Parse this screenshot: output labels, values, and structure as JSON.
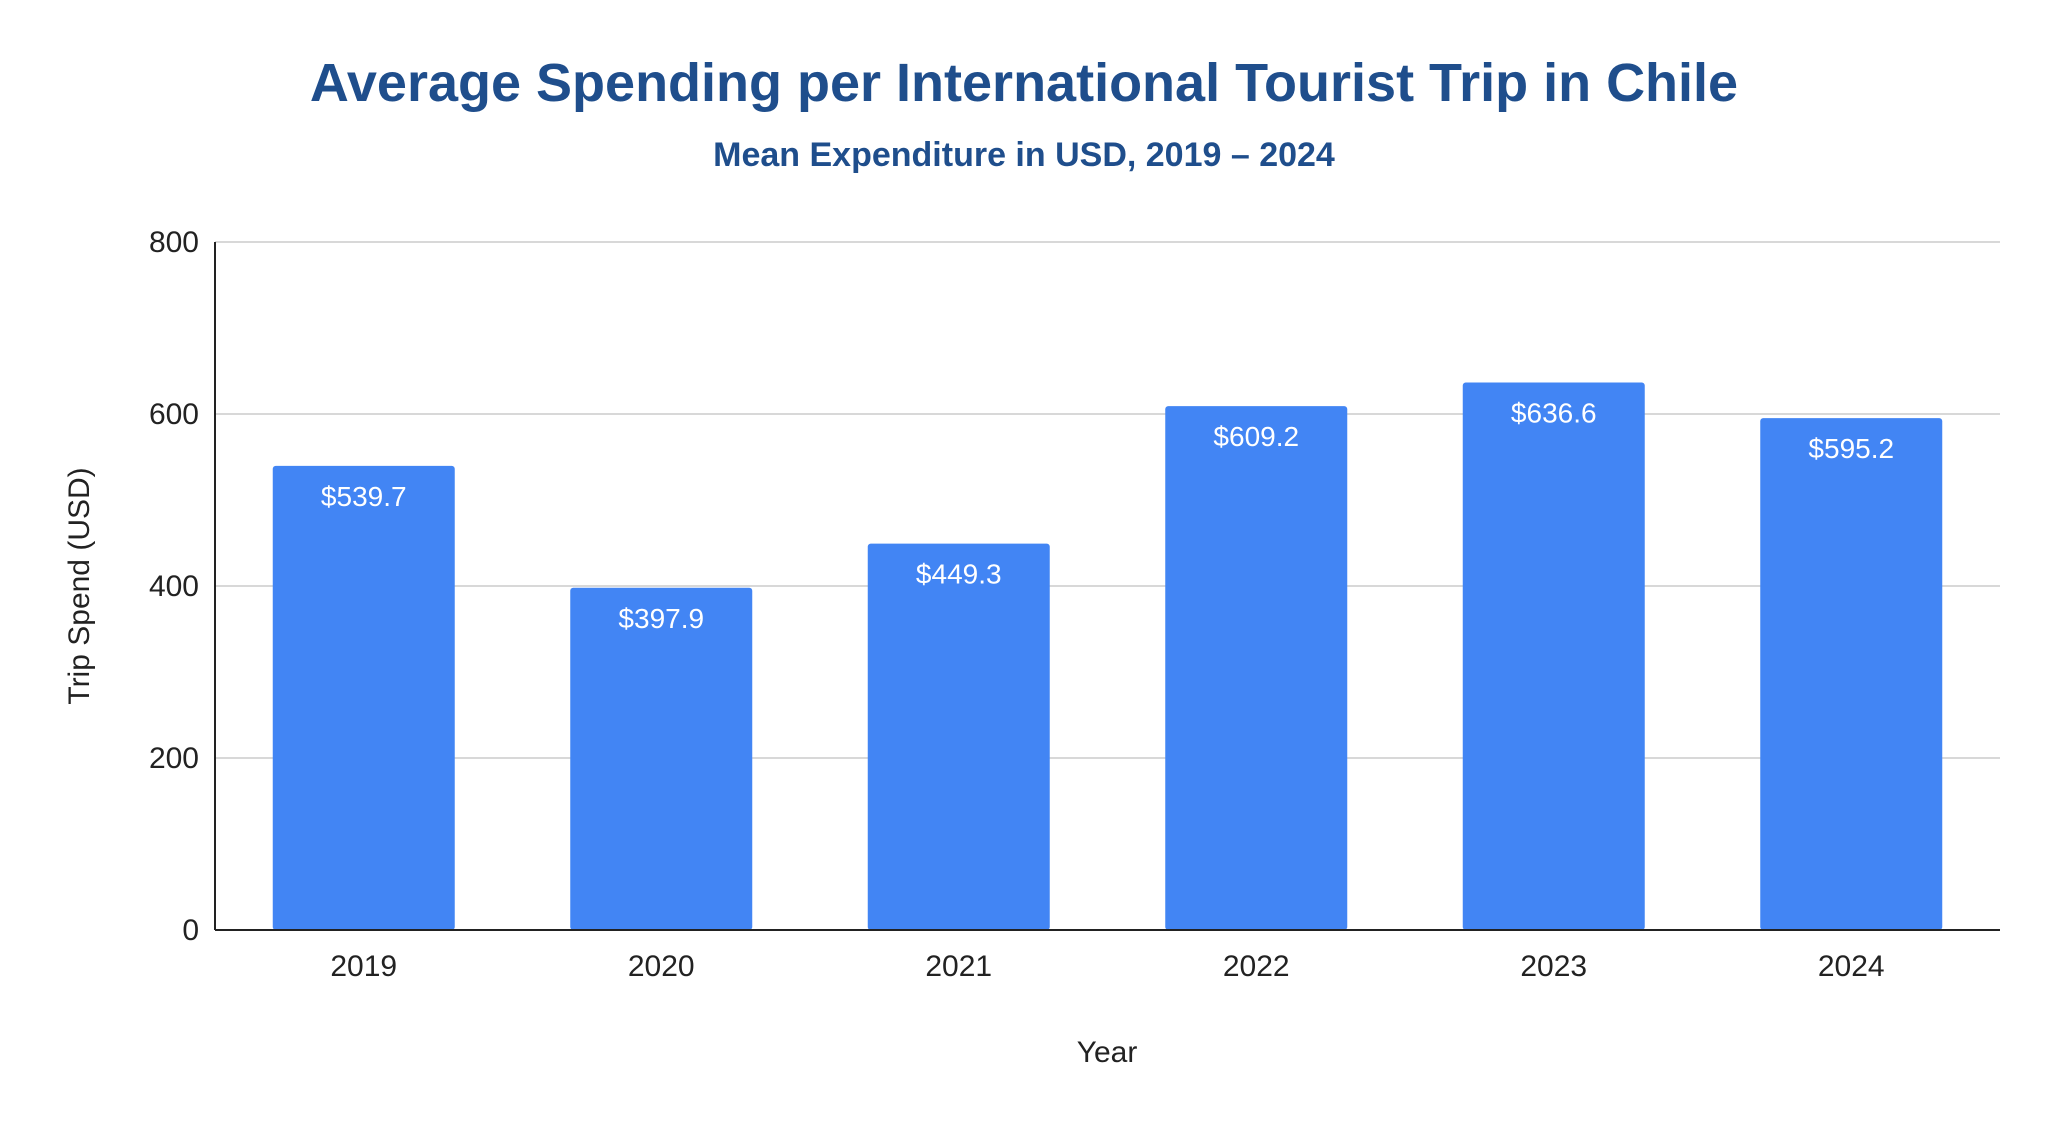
{
  "chart_data": {
    "type": "bar",
    "title": "Average Spending per International Tourist Trip in Chile",
    "subtitle": "Mean Expenditure in USD, 2019 – 2024",
    "xlabel": "Year",
    "ylabel": "Trip Spend (USD)",
    "categories": [
      "2019",
      "2020",
      "2021",
      "2022",
      "2023",
      "2024"
    ],
    "values": [
      539.7,
      397.9,
      449.3,
      609.2,
      636.6,
      595.2
    ],
    "data_labels": [
      "$539.7",
      "$397.9",
      "$449.3",
      "$609.2",
      "$636.6",
      "$595.2"
    ],
    "ylim": [
      0,
      800
    ],
    "yticks": [
      0,
      200,
      400,
      600,
      800
    ],
    "grid": true,
    "legend": "none",
    "bar_color": "#4285f4"
  }
}
